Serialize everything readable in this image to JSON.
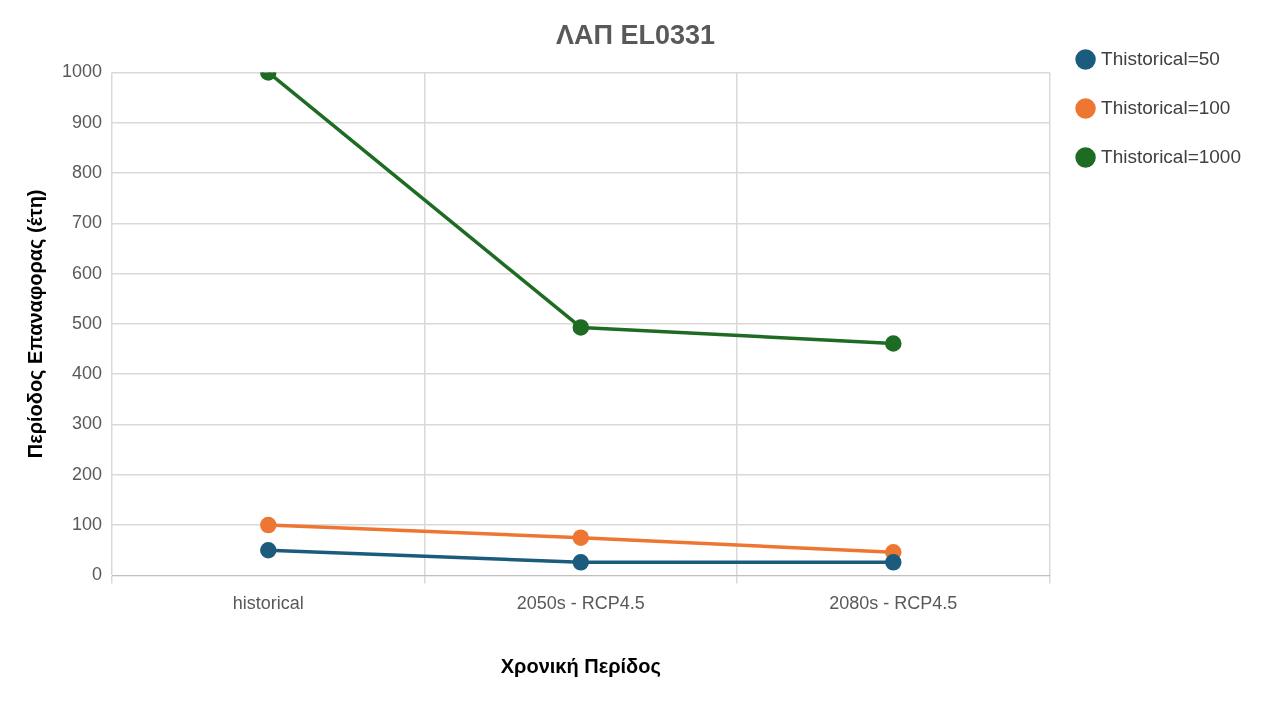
{
  "chart_data": {
    "type": "line",
    "title": "ΛΑΠ EL0331",
    "xlabel": "Χρονική Περίδος",
    "ylabel": "Περίοδος Επαναφορας (έτη)",
    "categories": [
      "historical",
      "2050s - RCP4.5",
      "2080s - RCP4.5"
    ],
    "series": [
      {
        "name": "Thistorical=50",
        "color": "#1b5c7e",
        "values": [
          50,
          26,
          26
        ]
      },
      {
        "name": "Thistorical=100",
        "color": "#ee7633",
        "values": [
          100,
          75,
          46
        ]
      },
      {
        "name": "Thistorical=1000",
        "color": "#1e6b23",
        "values": [
          1000,
          493,
          461
        ]
      }
    ],
    "ylim": [
      0,
      1000
    ],
    "yticks": [
      0,
      100,
      200,
      300,
      400,
      500,
      600,
      700,
      800,
      900,
      1000
    ],
    "grid": true,
    "legend": "right",
    "marker": "circle",
    "line_style": "solid"
  }
}
